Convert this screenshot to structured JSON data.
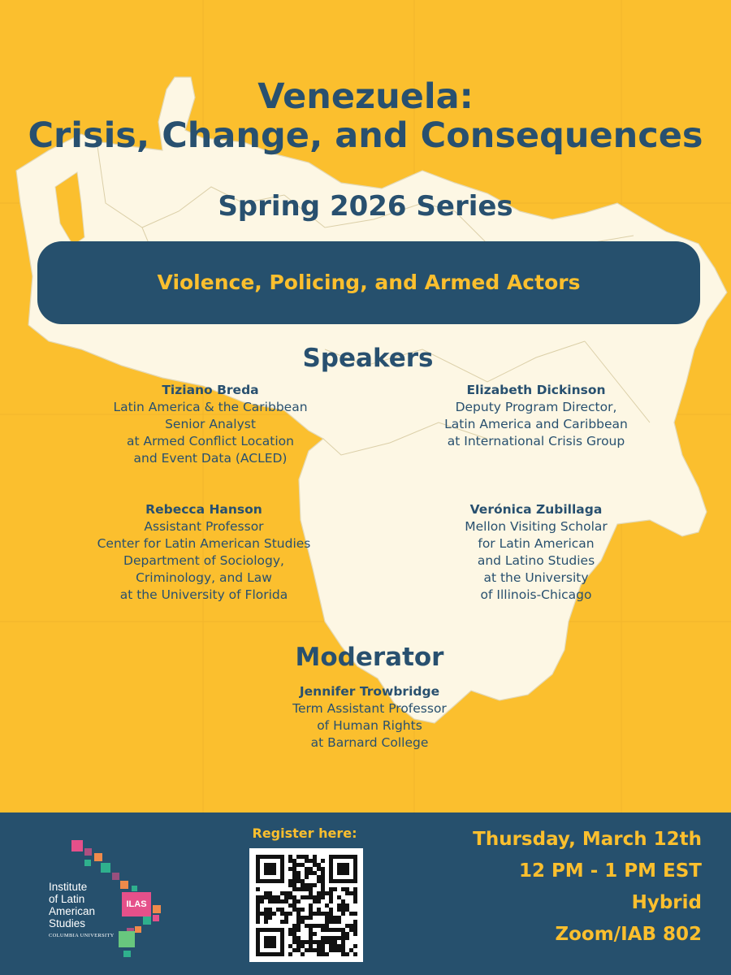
{
  "header": {
    "title_line1": "Venezuela:",
    "title_line2": "Crisis, Change, and Consequences",
    "series": "Spring 2026 Series"
  },
  "topic": "Violence, Policing, and Armed Actors",
  "speakers_heading": "Speakers",
  "speakers": [
    {
      "name": "Tiziano Breda",
      "lines": [
        "Latin America & the Caribbean",
        "Senior Analyst",
        "at Armed Conflict Location",
        "and Event Data (ACLED)"
      ]
    },
    {
      "name": "Elizabeth Dickinson",
      "lines": [
        "Deputy Program Director,",
        "Latin America and Caribbean",
        "at International Crisis Group"
      ]
    },
    {
      "name": "Rebecca Hanson",
      "lines": [
        "Assistant Professor",
        "Center for Latin American Studies",
        "Department of Sociology,",
        "Criminology, and Law",
        "at the University of Florida"
      ]
    },
    {
      "name": "Verónica Zubillaga",
      "lines": [
        "Mellon Visiting Scholar",
        "for Latin American",
        "and Latino Studies",
        "at the University",
        "of Illinois-Chicago"
      ]
    }
  ],
  "moderator_heading": "Moderator",
  "moderator": {
    "name": "Jennifer Trowbridge",
    "lines": [
      "Term Assistant Professor",
      "of Human Rights",
      "at Barnard College"
    ]
  },
  "footer": {
    "register_label": "Register here:",
    "event": {
      "date": "Thursday, March 12th",
      "time": "12 PM - 1 PM EST",
      "format": "Hybrid",
      "location": "Zoom/IAB 802"
    },
    "logo": {
      "lines": [
        "Institute",
        "of Latin",
        "American",
        "Studies"
      ],
      "badge": "ILAS",
      "university": "COLUMBIA UNIVERSITY"
    }
  },
  "colors": {
    "background": "#fbbf2e",
    "navy": "#26506d",
    "map": "#fdf7e4",
    "accent_pink": "#e5508a",
    "accent_green": "#2fb08d"
  }
}
